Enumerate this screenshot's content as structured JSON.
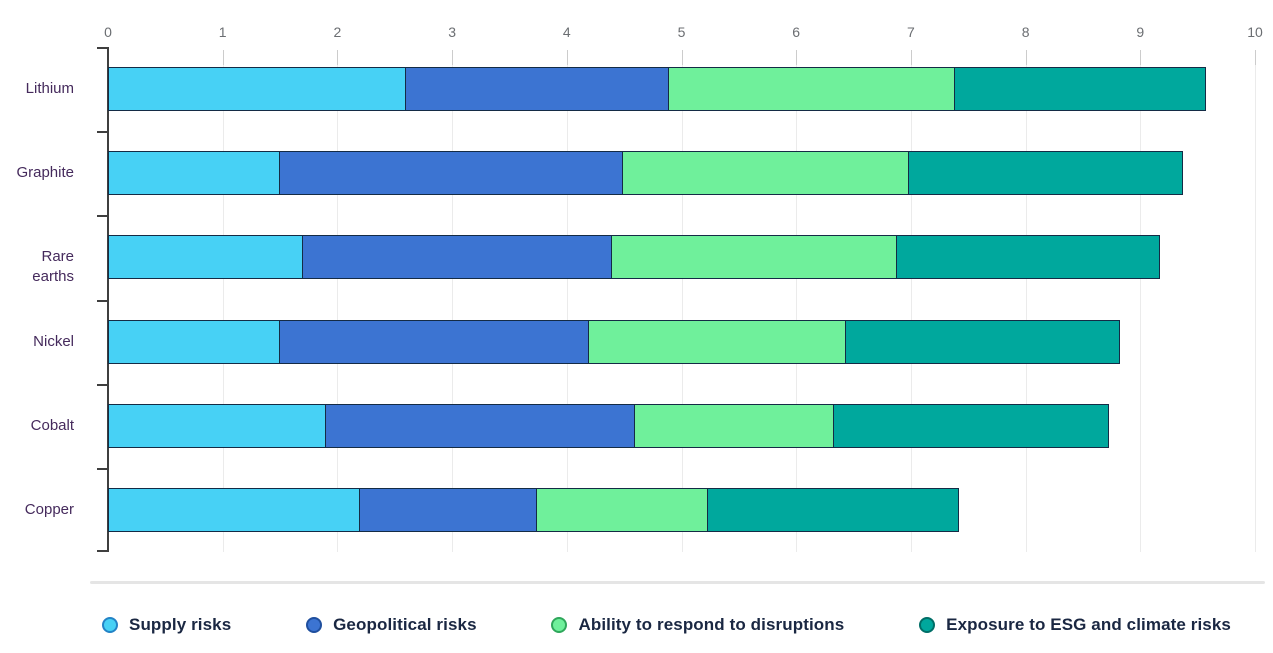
{
  "chart_data": {
    "type": "bar",
    "orientation": "horizontal",
    "stacked": true,
    "categories": [
      "Lithium",
      "Graphite",
      "Rare earths",
      "Nickel",
      "Cobalt",
      "Copper"
    ],
    "series": [
      {
        "name": "Supply risks",
        "color": "#47d1f5",
        "ring_color": "#2383c6",
        "values": [
          2.6,
          1.5,
          1.7,
          1.5,
          1.9,
          2.2
        ]
      },
      {
        "name": "Geopolitical risks",
        "color": "#3c74d2",
        "ring_color": "#1f4f9e",
        "values": [
          2.3,
          3.0,
          2.7,
          2.7,
          2.7,
          1.55
        ]
      },
      {
        "name": "Ability to respond to disruptions",
        "color": "#6ff09b",
        "ring_color": "#2fa75b",
        "values": [
          2.5,
          2.5,
          2.5,
          2.25,
          1.75,
          1.5
        ]
      },
      {
        "name": "Exposure to ESG and climate risks",
        "color": "#00a89d",
        "ring_color": "#006e67",
        "values": [
          2.2,
          2.4,
          2.3,
          2.4,
          2.4,
          2.2
        ]
      }
    ],
    "totals": [
      9.6,
      9.4,
      9.2,
      8.85,
      8.75,
      7.45
    ],
    "xlim": [
      0,
      10
    ],
    "x_ticks": [
      0,
      1,
      2,
      3,
      4,
      5,
      6,
      7,
      8,
      9,
      10
    ],
    "axis_position": "top",
    "grid": true,
    "legend_position": "bottom",
    "title": "",
    "xlabel": "",
    "ylabel": ""
  },
  "colors": {
    "bar_border": "#142b45",
    "axis_line": "#3f3f3f",
    "grid_line": "#ebebeb",
    "grid_tick": "#cccccc",
    "x_tick_label": "#6b6e72",
    "category_label": "#452a5c",
    "legend_text": "#1a2742",
    "divider": "#e5e5e5",
    "background": "#ffffff"
  }
}
